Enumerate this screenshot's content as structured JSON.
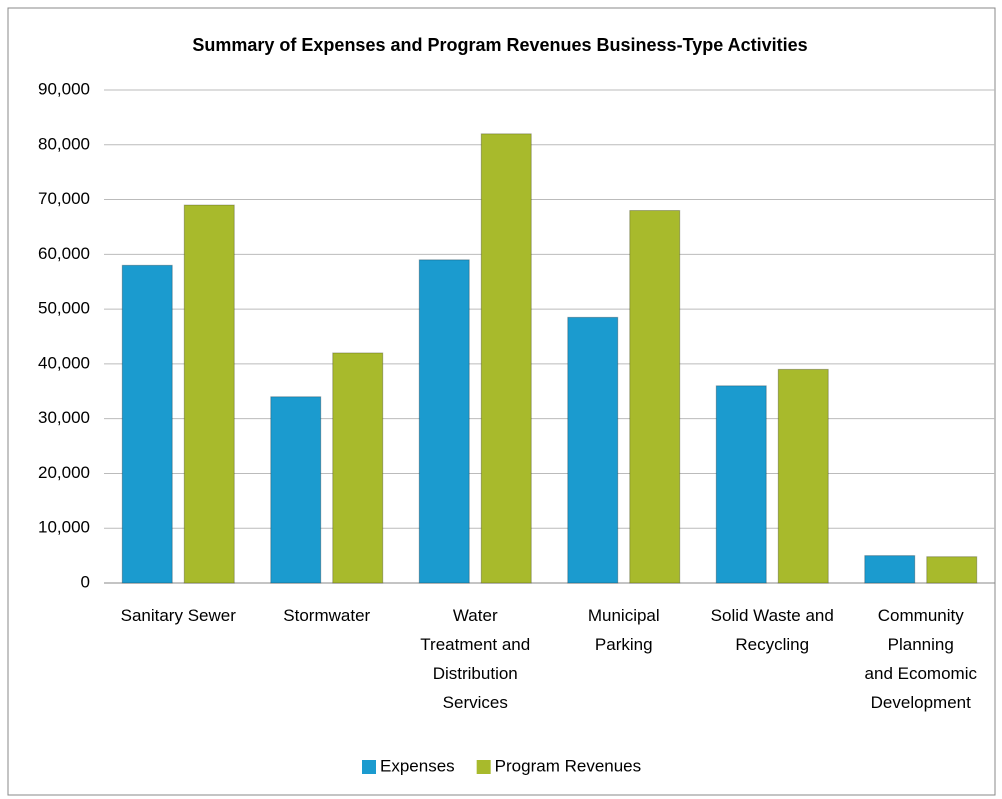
{
  "chart_data": {
    "type": "bar",
    "title": "Summary of Expenses and Program Revenues  Business-Type Activities",
    "categories": [
      "Sanitary Sewer",
      "Stormwater",
      "Water\nTreatment and\nDistribution\nServices",
      "Municipal\nParking",
      "Solid Waste and\nRecycling",
      "Community\nPlanning\nand Ecomomic\nDevelopment"
    ],
    "series": [
      {
        "name": "Expenses",
        "color": "#1b9bcf",
        "values": [
          58000,
          34000,
          59000,
          48500,
          36000,
          5000
        ]
      },
      {
        "name": "Program Revenues",
        "color": "#a8ba2c",
        "values": [
          69000,
          42000,
          82000,
          68000,
          39000,
          4800
        ]
      }
    ],
    "ylim": [
      0,
      90000
    ],
    "yticks": [
      0,
      {
        "value": 10000,
        "label": "10,000"
      },
      {
        "value": 20000,
        "label": "20,000"
      },
      {
        "value": 30000,
        "label": "30,000"
      },
      {
        "value": 40000,
        "label": "40,000"
      },
      {
        "value": 50000,
        "label": "50,000"
      },
      {
        "value": 60000,
        "label": "60,000"
      },
      {
        "value": 70000,
        "label": "70,000"
      },
      {
        "value": 80000,
        "label": "80,000"
      },
      {
        "value": 90000,
        "label": "90,000"
      }
    ],
    "grid": true,
    "legend": "bottom"
  }
}
